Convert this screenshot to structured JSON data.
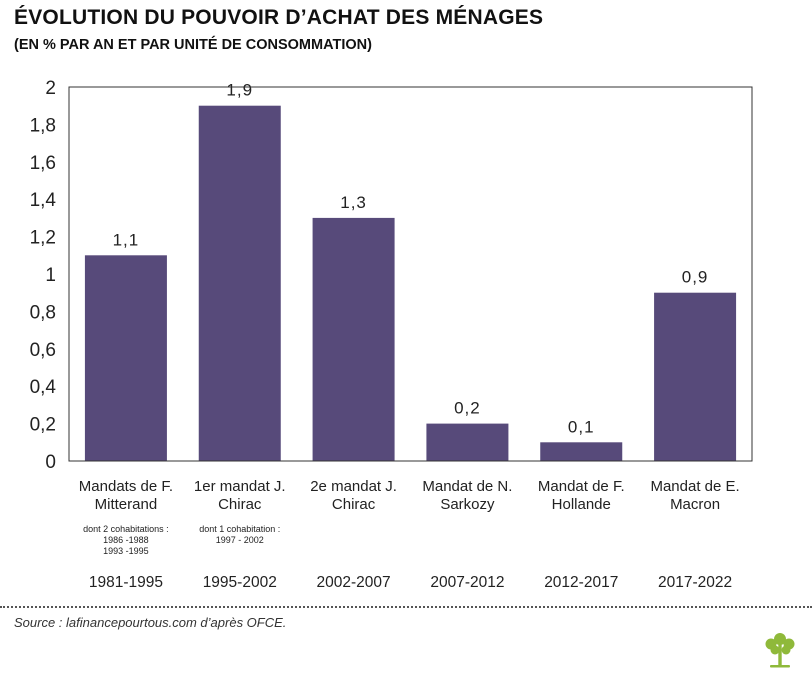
{
  "header": {
    "title": "ÉVOLUTION DU POUVOIR D’ACHAT DES MÉNAGES",
    "subtitle": "(EN % PAR AN ET PAR UNITÉ DE CONSOMMATION)"
  },
  "chart_data": {
    "type": "bar",
    "title": "ÉVOLUTION DU POUVOIR D’ACHAT DES MÉNAGES",
    "subtitle": "(EN % PAR AN ET PAR UNITÉ DE CONSOMMATION)",
    "categories": [
      "Mandats de F. Mitterand",
      "1er mandat J. Chirac",
      "2e mandat J. Chirac",
      "Mandat de N. Sarkozy",
      "Mandat de F. Hollande",
      "Mandat de E. Macron"
    ],
    "category_lines": [
      [
        "Mandats de F.",
        "Mitterand"
      ],
      [
        "1er mandat J.",
        "Chirac"
      ],
      [
        "2e mandat J.",
        "Chirac"
      ],
      [
        "Mandat de N.",
        "Sarkozy"
      ],
      [
        "Mandat de F.",
        "Hollande"
      ],
      [
        "Mandat de E.",
        "Macron"
      ]
    ],
    "notes": [
      [
        "dont 2 cohabitations :",
        "1986 -1988",
        "1993 -1995"
      ],
      [
        "dont 1 cohabitation :",
        "1997 - 2002"
      ],
      [],
      [],
      [],
      []
    ],
    "periods": [
      "1981-1995",
      "1995-2002",
      "2002-2007",
      "2007-2012",
      "2012-2017",
      "2017-2022"
    ],
    "values": [
      1.1,
      1.9,
      1.3,
      0.2,
      0.1,
      0.9
    ],
    "value_labels": [
      "1,1",
      "1,9",
      "1,3",
      "0,2",
      "0,1",
      "0,9"
    ],
    "yticks": [
      0,
      0.2,
      0.4,
      0.6,
      0.8,
      1,
      1.2,
      1.4,
      1.6,
      1.8,
      2
    ],
    "ytick_labels": [
      "0",
      "0,2",
      "0,4",
      "0,6",
      "0,8",
      "1",
      "1,2",
      "1,4",
      "1,6",
      "1,8",
      "2"
    ],
    "ylim": [
      0,
      2
    ],
    "grid": false,
    "bar_color": "#574a7a",
    "xlabel": "",
    "ylabel": ""
  },
  "footer": {
    "source": "Source : lafinancepourtous.com d’après OFCE."
  }
}
